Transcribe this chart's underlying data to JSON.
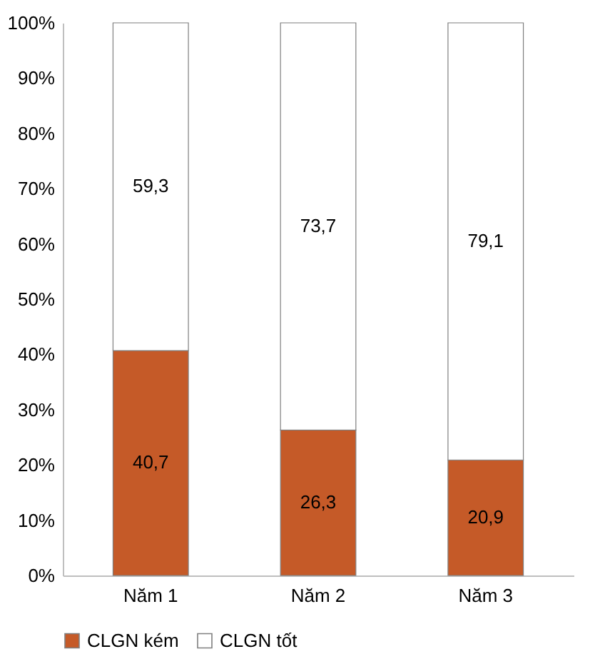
{
  "chart_data": {
    "type": "bar",
    "stacked": true,
    "categories": [
      "Năm 1",
      "Năm 2",
      "Năm 3"
    ],
    "series": [
      {
        "name": "CLGN kém",
        "color": "#c55a28",
        "values": [
          40.7,
          26.3,
          20.9
        ],
        "value_labels": [
          "40,7",
          "26,3",
          "20,9"
        ]
      },
      {
        "name": "CLGN tốt",
        "color": "#ffffff",
        "values": [
          59.3,
          73.7,
          79.1
        ],
        "value_labels": [
          "59,3",
          "73,7",
          "79,1"
        ]
      }
    ],
    "ylim": [
      0,
      100
    ],
    "yticks": [
      {
        "value": 0,
        "label": "0%"
      },
      {
        "value": 10,
        "label": "10%"
      },
      {
        "value": 20,
        "label": "20%"
      },
      {
        "value": 30,
        "label": "30%"
      },
      {
        "value": 40,
        "label": "40%"
      },
      {
        "value": 50,
        "label": "50%"
      },
      {
        "value": 60,
        "label": "60%"
      },
      {
        "value": 70,
        "label": "70%"
      },
      {
        "value": 80,
        "label": "80%"
      },
      {
        "value": 90,
        "label": "90%"
      },
      {
        "value": 100,
        "label": "100%"
      }
    ],
    "grid": false,
    "legend": "bottom"
  }
}
